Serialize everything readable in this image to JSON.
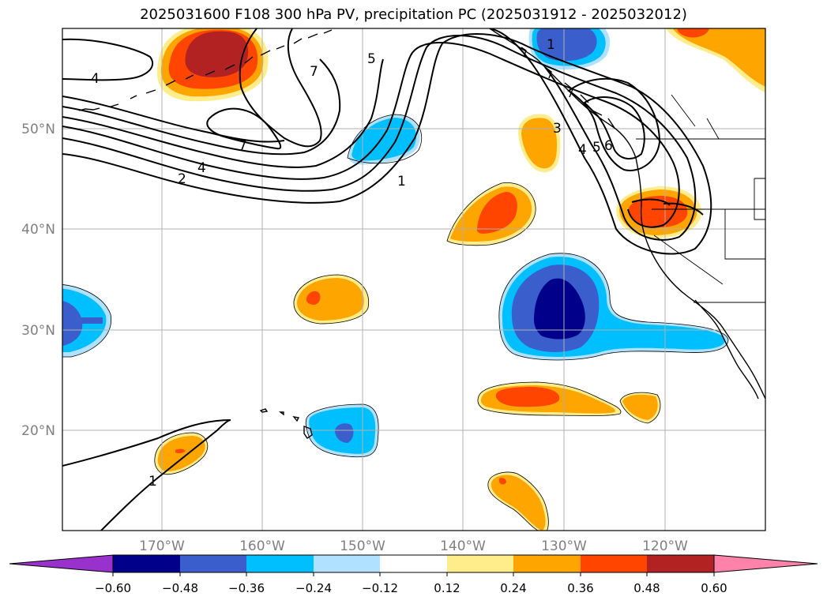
{
  "title": "2025031600 F108 300 hPa PV, precipitation PC (2025031912 - 2025032012)",
  "map": {
    "lon_labels": [
      "170°W",
      "160°W",
      "150°W",
      "140°W",
      "130°W",
      "120°W"
    ],
    "lat_labels": [
      "50°N",
      "40°N",
      "30°N",
      "20°N"
    ],
    "gridline_color": "#b0b0b0"
  },
  "pv_contour_labels": [
    "1",
    "2",
    "4",
    "5",
    "7",
    "7",
    "3",
    "4",
    "5",
    "6",
    "4",
    "1",
    "1"
  ],
  "colorbar": {
    "tick_labels": [
      "−0.60",
      "−0.48",
      "−0.36",
      "−0.24",
      "−0.12",
      "0.12",
      "0.24",
      "0.36",
      "0.48",
      "0.60"
    ],
    "colors": [
      "#9932cc",
      "#00008b",
      "#3a5fcd",
      "#00bfff",
      "#b0e2ff",
      "#ffffff",
      "#ffec8b",
      "#ffa500",
      "#ff4500",
      "#b22222",
      "#ff82ab"
    ]
  }
}
